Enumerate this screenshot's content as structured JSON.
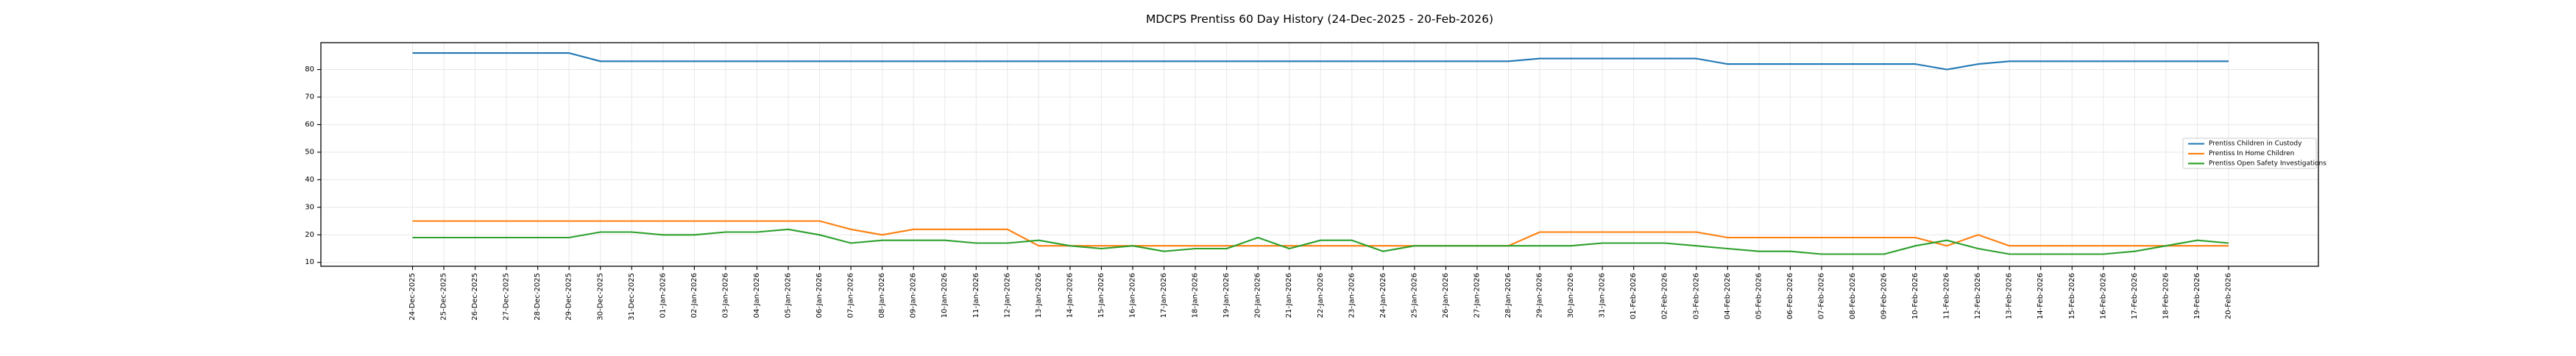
{
  "chart_data": {
    "type": "line",
    "title": "MDCPS Prentiss 60 Day History (24-Dec-2025 - 20-Feb-2026)",
    "xlabel": "",
    "ylabel": "",
    "ylim": [
      8.6,
      89.8
    ],
    "yticks": [
      10,
      20,
      30,
      40,
      50,
      60,
      70,
      80
    ],
    "grid": true,
    "legend_position": "center-right",
    "background_color": "#ffffff",
    "axis_color": "#000000",
    "grid_color": "#e8e8e8",
    "categories": [
      "24-Dec-2025",
      "25-Dec-2025",
      "26-Dec-2025",
      "27-Dec-2025",
      "28-Dec-2025",
      "29-Dec-2025",
      "30-Dec-2025",
      "31-Dec-2025",
      "01-Jan-2026",
      "02-Jan-2026",
      "03-Jan-2026",
      "04-Jan-2026",
      "05-Jan-2026",
      "06-Jan-2026",
      "07-Jan-2026",
      "08-Jan-2026",
      "09-Jan-2026",
      "10-Jan-2026",
      "11-Jan-2026",
      "12-Jan-2026",
      "13-Jan-2026",
      "14-Jan-2026",
      "15-Jan-2026",
      "16-Jan-2026",
      "17-Jan-2026",
      "18-Jan-2026",
      "19-Jan-2026",
      "20-Jan-2026",
      "21-Jan-2026",
      "22-Jan-2026",
      "23-Jan-2026",
      "24-Jan-2026",
      "25-Jan-2026",
      "26-Jan-2026",
      "27-Jan-2026",
      "28-Jan-2026",
      "29-Jan-2026",
      "30-Jan-2026",
      "31-Jan-2026",
      "01-Feb-2026",
      "02-Feb-2026",
      "03-Feb-2026",
      "04-Feb-2026",
      "05-Feb-2026",
      "06-Feb-2026",
      "07-Feb-2026",
      "08-Feb-2026",
      "09-Feb-2026",
      "10-Feb-2026",
      "11-Feb-2026",
      "12-Feb-2026",
      "13-Feb-2026",
      "14-Feb-2026",
      "15-Feb-2026",
      "16-Feb-2026",
      "17-Feb-2026",
      "18-Feb-2026",
      "19-Feb-2026",
      "20-Feb-2026"
    ],
    "series": [
      {
        "name": "Prentiss Children in Custody",
        "color": "#1f77b4",
        "values": [
          86,
          86,
          86,
          86,
          86,
          86,
          83,
          83,
          83,
          83,
          83,
          83,
          83,
          83,
          83,
          83,
          83,
          83,
          83,
          83,
          83,
          83,
          83,
          83,
          83,
          83,
          83,
          83,
          83,
          83,
          83,
          83,
          83,
          83,
          83,
          83,
          84,
          84,
          84,
          84,
          84,
          84,
          82,
          82,
          82,
          82,
          82,
          82,
          82,
          80,
          82,
          83,
          83,
          83,
          83,
          83,
          83,
          83,
          83
        ]
      },
      {
        "name": "Prentiss In Home Children",
        "color": "#ff7f0e",
        "values": [
          25,
          25,
          25,
          25,
          25,
          25,
          25,
          25,
          25,
          25,
          25,
          25,
          25,
          25,
          22,
          20,
          22,
          22,
          22,
          22,
          16,
          16,
          16,
          16,
          16,
          16,
          16,
          16,
          16,
          16,
          16,
          16,
          16,
          16,
          16,
          16,
          21,
          21,
          21,
          21,
          21,
          21,
          19,
          19,
          19,
          19,
          19,
          19,
          19,
          16,
          20,
          16,
          16,
          16,
          16,
          16,
          16,
          16,
          16
        ]
      },
      {
        "name": "Prentiss Open Safety Investigations",
        "color": "#2ca02c",
        "values": [
          19,
          19,
          19,
          19,
          19,
          19,
          21,
          21,
          20,
          20,
          21,
          21,
          22,
          20,
          17,
          18,
          18,
          18,
          17,
          17,
          18,
          16,
          15,
          16,
          14,
          15,
          15,
          19,
          15,
          18,
          18,
          14,
          16,
          16,
          16,
          16,
          16,
          16,
          17,
          17,
          17,
          16,
          15,
          14,
          14,
          13,
          13,
          13,
          16,
          18,
          15,
          13,
          13,
          13,
          13,
          14,
          16,
          18,
          17
        ]
      }
    ]
  }
}
